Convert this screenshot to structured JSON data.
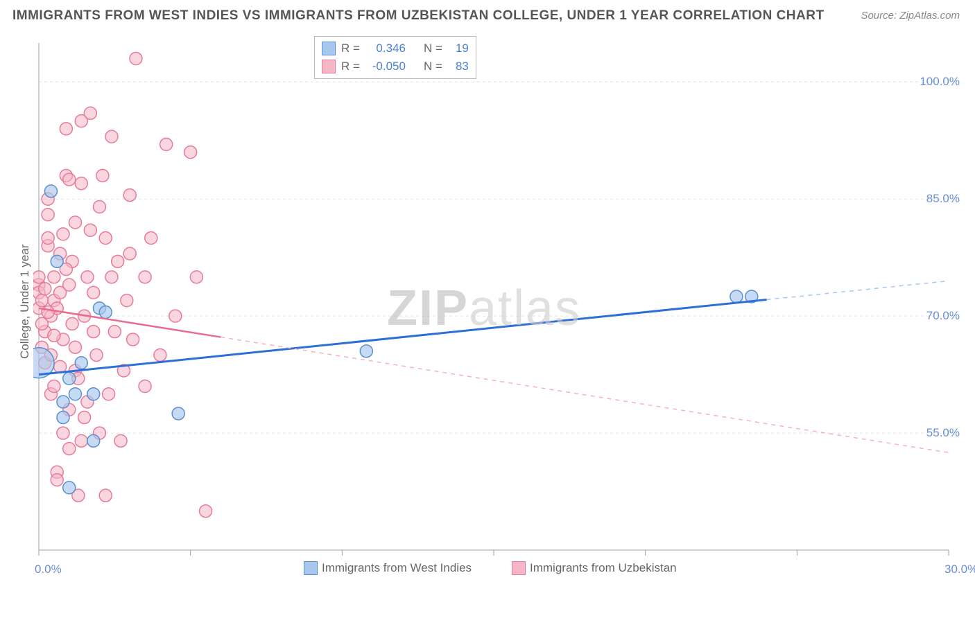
{
  "title": "IMMIGRANTS FROM WEST INDIES VS IMMIGRANTS FROM UZBEKISTAN COLLEGE, UNDER 1 YEAR CORRELATION CHART",
  "source": "Source: ZipAtlas.com",
  "watermark_a": "ZIP",
  "watermark_b": "atlas",
  "ylabel": "College, Under 1 year",
  "chart": {
    "type": "scatter",
    "background_color": "#ffffff",
    "grid_color": "#e2e2e2",
    "axis_color": "#bfbfbf",
    "tick_color": "#a0a0a0",
    "xlim": [
      0,
      30
    ],
    "ylim": [
      40,
      105
    ],
    "xticks": [
      0,
      30
    ],
    "xtick_labels": [
      "0.0%",
      "30.0%"
    ],
    "yticks": [
      55,
      70,
      85,
      100
    ],
    "ytick_labels": [
      "55.0%",
      "70.0%",
      "85.0%",
      "100.0%"
    ],
    "x_minor_ticks": [
      0,
      5,
      10,
      15,
      20,
      25,
      30
    ],
    "tick_label_fontsize": 17,
    "tick_label_color": "#6a8fd8",
    "ylabel_fontsize": 17
  },
  "series": [
    {
      "name": "Immigrants from West Indies",
      "marker_fill": "#a7c7ed",
      "marker_stroke": "#5a8fd0",
      "marker_opacity": 0.65,
      "marker_radius": 9,
      "line_color": "#2d6fd8",
      "line_width": 3,
      "dash_color": "#a7c7ed",
      "R": "0.346",
      "N": "19",
      "trend": {
        "x1": 0,
        "y1": 62.5,
        "x2": 30,
        "y2": 74.5,
        "solid_until_x": 24
      },
      "points": [
        {
          "x": 0.0,
          "y": 64.0,
          "r": 22
        },
        {
          "x": 0.4,
          "y": 86.0
        },
        {
          "x": 0.6,
          "y": 77.0
        },
        {
          "x": 0.8,
          "y": 59.0
        },
        {
          "x": 0.8,
          "y": 57.0
        },
        {
          "x": 1.0,
          "y": 48.0
        },
        {
          "x": 1.0,
          "y": 62.0
        },
        {
          "x": 1.2,
          "y": 60.0
        },
        {
          "x": 1.8,
          "y": 60.0
        },
        {
          "x": 1.8,
          "y": 54.0
        },
        {
          "x": 2.0,
          "y": 71.0
        },
        {
          "x": 2.2,
          "y": 70.5
        },
        {
          "x": 1.4,
          "y": 64.0
        },
        {
          "x": 4.6,
          "y": 57.5
        },
        {
          "x": 10.8,
          "y": 65.5
        },
        {
          "x": 23.0,
          "y": 72.5
        },
        {
          "x": 23.5,
          "y": 72.5
        }
      ]
    },
    {
      "name": "Immigrants from Uzbekistan",
      "marker_fill": "#f5b7c7",
      "marker_stroke": "#e77a98",
      "marker_opacity": 0.55,
      "marker_radius": 9,
      "line_color": "#e86b8e",
      "line_width": 2.5,
      "dash_color": "#f2b3c5",
      "R": "-0.050",
      "N": "83",
      "trend": {
        "x1": 0,
        "y1": 71.0,
        "x2": 30,
        "y2": 52.5,
        "solid_until_x": 6
      },
      "points": [
        {
          "x": 0.0,
          "y": 71.0
        },
        {
          "x": 0.0,
          "y": 74.0
        },
        {
          "x": 0.0,
          "y": 73.0
        },
        {
          "x": 0.0,
          "y": 75.0
        },
        {
          "x": 0.1,
          "y": 72.0
        },
        {
          "x": 0.1,
          "y": 66.0
        },
        {
          "x": 0.2,
          "y": 68.0
        },
        {
          "x": 0.2,
          "y": 64.0
        },
        {
          "x": 0.3,
          "y": 79.0
        },
        {
          "x": 0.3,
          "y": 80.0
        },
        {
          "x": 0.3,
          "y": 83.0
        },
        {
          "x": 0.3,
          "y": 85.0
        },
        {
          "x": 0.4,
          "y": 70.0
        },
        {
          "x": 0.4,
          "y": 60.0
        },
        {
          "x": 0.4,
          "y": 65.0
        },
        {
          "x": 0.5,
          "y": 61.0
        },
        {
          "x": 0.5,
          "y": 72.0
        },
        {
          "x": 0.5,
          "y": 75.0
        },
        {
          "x": 0.6,
          "y": 50.0
        },
        {
          "x": 0.6,
          "y": 49.0
        },
        {
          "x": 0.6,
          "y": 71.0
        },
        {
          "x": 0.7,
          "y": 78.0
        },
        {
          "x": 0.7,
          "y": 73.0
        },
        {
          "x": 0.8,
          "y": 55.0
        },
        {
          "x": 0.8,
          "y": 80.5
        },
        {
          "x": 0.8,
          "y": 67.0
        },
        {
          "x": 0.9,
          "y": 88.0
        },
        {
          "x": 0.9,
          "y": 94.0
        },
        {
          "x": 1.0,
          "y": 87.5
        },
        {
          "x": 1.0,
          "y": 74.0
        },
        {
          "x": 1.0,
          "y": 58.0
        },
        {
          "x": 1.0,
          "y": 53.0
        },
        {
          "x": 1.1,
          "y": 77.0
        },
        {
          "x": 1.2,
          "y": 66.0
        },
        {
          "x": 1.2,
          "y": 63.0
        },
        {
          "x": 1.2,
          "y": 82.0
        },
        {
          "x": 1.3,
          "y": 62.0
        },
        {
          "x": 1.3,
          "y": 47.0
        },
        {
          "x": 1.4,
          "y": 54.0
        },
        {
          "x": 1.4,
          "y": 87.0
        },
        {
          "x": 1.4,
          "y": 95.0
        },
        {
          "x": 1.5,
          "y": 70.0
        },
        {
          "x": 1.5,
          "y": 57.0
        },
        {
          "x": 1.6,
          "y": 75.0
        },
        {
          "x": 1.7,
          "y": 81.0
        },
        {
          "x": 1.7,
          "y": 96.0
        },
        {
          "x": 1.8,
          "y": 73.0
        },
        {
          "x": 1.8,
          "y": 68.0
        },
        {
          "x": 1.9,
          "y": 65.0
        },
        {
          "x": 2.0,
          "y": 55.0
        },
        {
          "x": 2.0,
          "y": 84.0
        },
        {
          "x": 2.1,
          "y": 88.0
        },
        {
          "x": 2.2,
          "y": 47.0
        },
        {
          "x": 2.2,
          "y": 80.0
        },
        {
          "x": 2.3,
          "y": 60.0
        },
        {
          "x": 2.4,
          "y": 75.0
        },
        {
          "x": 2.4,
          "y": 93.0
        },
        {
          "x": 2.5,
          "y": 68.0
        },
        {
          "x": 2.7,
          "y": 54.0
        },
        {
          "x": 2.8,
          "y": 63.0
        },
        {
          "x": 2.9,
          "y": 72.0
        },
        {
          "x": 3.0,
          "y": 85.5
        },
        {
          "x": 3.0,
          "y": 78.0
        },
        {
          "x": 0.1,
          "y": 69.0
        },
        {
          "x": 0.2,
          "y": 73.5
        },
        {
          "x": 3.1,
          "y": 67.0
        },
        {
          "x": 3.2,
          "y": 103.0
        },
        {
          "x": 3.5,
          "y": 61.0
        },
        {
          "x": 3.5,
          "y": 75.0
        },
        {
          "x": 3.7,
          "y": 80.0
        },
        {
          "x": 4.0,
          "y": 65.0
        },
        {
          "x": 4.2,
          "y": 92.0
        },
        {
          "x": 4.5,
          "y": 70.0
        },
        {
          "x": 5.0,
          "y": 91.0
        },
        {
          "x": 5.2,
          "y": 75.0
        },
        {
          "x": 5.5,
          "y": 45.0
        },
        {
          "x": 1.1,
          "y": 69.0
        },
        {
          "x": 0.5,
          "y": 67.5
        },
        {
          "x": 0.7,
          "y": 63.5
        },
        {
          "x": 0.3,
          "y": 70.5
        },
        {
          "x": 0.9,
          "y": 76.0
        },
        {
          "x": 1.6,
          "y": 59.0
        },
        {
          "x": 2.6,
          "y": 77.0
        }
      ]
    }
  ],
  "stats_labels": {
    "R": "R =",
    "N": "N ="
  },
  "legend_bottom": [
    {
      "label": "Immigrants from West Indies",
      "fill": "#a7c7ed",
      "stroke": "#5a8fd0"
    },
    {
      "label": "Immigrants from Uzbekistan",
      "fill": "#f5b7c7",
      "stroke": "#e77a98"
    }
  ]
}
